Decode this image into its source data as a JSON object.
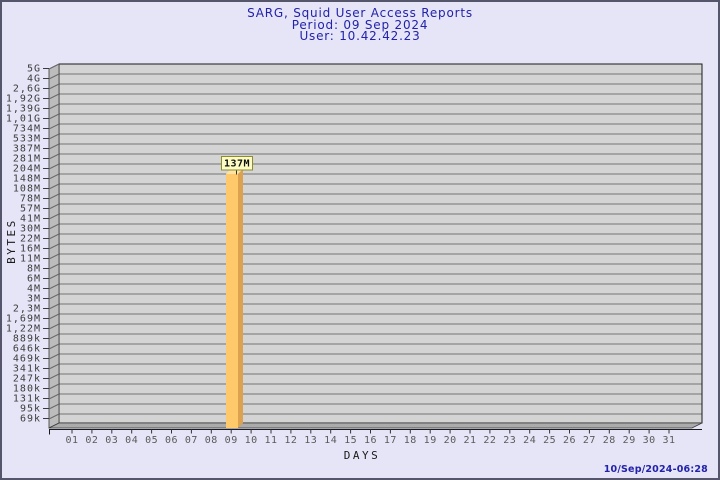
{
  "page": {
    "background": "#E5E5F7",
    "border_color": "#55556B"
  },
  "header": {
    "title": "SARG, Squid User Access Reports",
    "period": "Period: 09 Sep 2024",
    "user": "User: 10.42.42.23"
  },
  "footer": {
    "timestamp": "10/Sep/2024-06:28"
  },
  "chart_data": {
    "type": "bar",
    "title": "SARG, Squid User Access Reports",
    "subtitle": "Period: 09 Sep 2024",
    "user": "User: 10.42.42.23",
    "xlabel": "DAYS",
    "ylabel": "BYTES",
    "y_scale": "log",
    "grid": "on",
    "y_tick_labels": [
      "5G",
      "4G",
      "2,6G",
      "1,92G",
      "1,39G",
      "1,01G",
      "734M",
      "533M",
      "387M",
      "281M",
      "204M",
      "148M",
      "108M",
      "78M",
      "57M",
      "41M",
      "30M",
      "22M",
      "16M",
      "11M",
      "8M",
      "6M",
      "4M",
      "3M",
      "2,3M",
      "1,69M",
      "1,22M",
      "889k",
      "646k",
      "469k",
      "341k",
      "247k",
      "180k",
      "131k",
      "95k",
      "69k"
    ],
    "x_tick_labels": [
      "01",
      "02",
      "03",
      "04",
      "05",
      "06",
      "07",
      "08",
      "09",
      "10",
      "11",
      "12",
      "13",
      "14",
      "15",
      "16",
      "17",
      "18",
      "19",
      "20",
      "21",
      "22",
      "23",
      "24",
      "25",
      "26",
      "27",
      "28",
      "29",
      "30",
      "31"
    ],
    "bars": [
      {
        "day": "09",
        "label": "137M",
        "approx_bytes": 137000000
      }
    ],
    "timestamp": "10/Sep/2024-06:28"
  },
  "colors": {
    "bar_front": "#FEC96B",
    "bar_side": "#DDA24F",
    "bar_top": "#FFE3A3",
    "tooltip_bg": "#FBFBC3",
    "tooltip_border": "#8C8C2D",
    "title": "#2222AA",
    "timestamp": "#2222AA",
    "plot_bg": "#D4D4D4",
    "grid_line": "#747474",
    "wall": "#BCBCBC",
    "floor": "#ABABAB",
    "page_bg": "#E5E5F7"
  }
}
